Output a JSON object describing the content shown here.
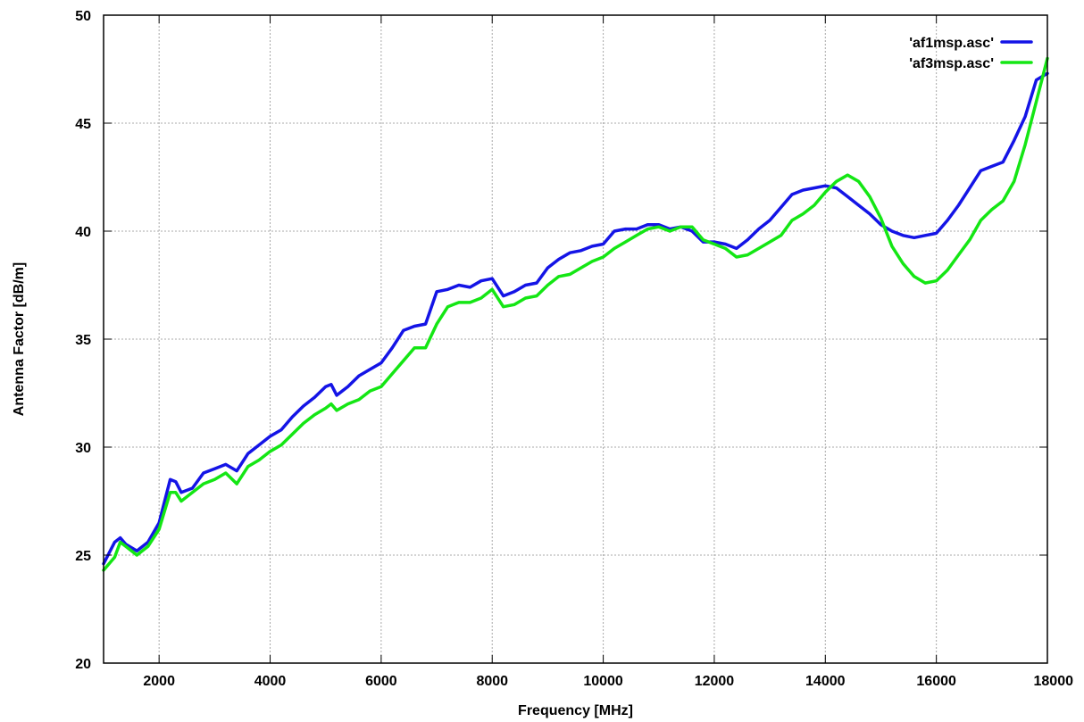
{
  "chart_data": {
    "type": "line",
    "title": "",
    "xlabel": "Frequency [MHz]",
    "ylabel": "Antenna Factor [dB/m]",
    "xlim": [
      1000,
      18000
    ],
    "ylim": [
      20,
      50
    ],
    "xticks": [
      2000,
      4000,
      6000,
      8000,
      10000,
      12000,
      14000,
      16000,
      18000
    ],
    "yticks": [
      20,
      25,
      30,
      35,
      40,
      45,
      50
    ],
    "grid": true,
    "legend_position": "top-right",
    "series": [
      {
        "name": "'af1msp.asc'",
        "color": "#1414e6",
        "points": [
          [
            1000,
            24.6
          ],
          [
            1200,
            25.6
          ],
          [
            1300,
            25.8
          ],
          [
            1400,
            25.5
          ],
          [
            1600,
            25.2
          ],
          [
            1800,
            25.6
          ],
          [
            2000,
            26.5
          ],
          [
            2200,
            28.5
          ],
          [
            2300,
            28.4
          ],
          [
            2400,
            27.9
          ],
          [
            2600,
            28.1
          ],
          [
            2800,
            28.8
          ],
          [
            3000,
            29.0
          ],
          [
            3200,
            29.2
          ],
          [
            3400,
            28.9
          ],
          [
            3600,
            29.7
          ],
          [
            3800,
            30.1
          ],
          [
            4000,
            30.5
          ],
          [
            4200,
            30.8
          ],
          [
            4400,
            31.4
          ],
          [
            4600,
            31.9
          ],
          [
            4800,
            32.3
          ],
          [
            5000,
            32.8
          ],
          [
            5100,
            32.9
          ],
          [
            5200,
            32.4
          ],
          [
            5400,
            32.8
          ],
          [
            5600,
            33.3
          ],
          [
            5800,
            33.6
          ],
          [
            6000,
            33.9
          ],
          [
            6200,
            34.6
          ],
          [
            6400,
            35.4
          ],
          [
            6600,
            35.6
          ],
          [
            6800,
            35.7
          ],
          [
            7000,
            37.2
          ],
          [
            7200,
            37.3
          ],
          [
            7400,
            37.5
          ],
          [
            7600,
            37.4
          ],
          [
            7800,
            37.7
          ],
          [
            8000,
            37.8
          ],
          [
            8200,
            37.0
          ],
          [
            8400,
            37.2
          ],
          [
            8600,
            37.5
          ],
          [
            8800,
            37.6
          ],
          [
            9000,
            38.3
          ],
          [
            9200,
            38.7
          ],
          [
            9400,
            39.0
          ],
          [
            9600,
            39.1
          ],
          [
            9800,
            39.3
          ],
          [
            10000,
            39.4
          ],
          [
            10200,
            40.0
          ],
          [
            10400,
            40.1
          ],
          [
            10600,
            40.1
          ],
          [
            10800,
            40.3
          ],
          [
            11000,
            40.3
          ],
          [
            11200,
            40.1
          ],
          [
            11400,
            40.2
          ],
          [
            11600,
            40.0
          ],
          [
            11800,
            39.5
          ],
          [
            12000,
            39.5
          ],
          [
            12200,
            39.4
          ],
          [
            12400,
            39.2
          ],
          [
            12600,
            39.6
          ],
          [
            12800,
            40.1
          ],
          [
            13000,
            40.5
          ],
          [
            13200,
            41.1
          ],
          [
            13400,
            41.7
          ],
          [
            13600,
            41.9
          ],
          [
            13800,
            42.0
          ],
          [
            14000,
            42.1
          ],
          [
            14200,
            42.0
          ],
          [
            14400,
            41.6
          ],
          [
            14600,
            41.2
          ],
          [
            14800,
            40.8
          ],
          [
            15000,
            40.3
          ],
          [
            15200,
            40.0
          ],
          [
            15400,
            39.8
          ],
          [
            15600,
            39.7
          ],
          [
            15800,
            39.8
          ],
          [
            16000,
            39.9
          ],
          [
            16200,
            40.5
          ],
          [
            16400,
            41.2
          ],
          [
            16600,
            42.0
          ],
          [
            16800,
            42.8
          ],
          [
            17000,
            43.0
          ],
          [
            17200,
            43.2
          ],
          [
            17400,
            44.2
          ],
          [
            17600,
            45.3
          ],
          [
            17800,
            47.0
          ],
          [
            18000,
            47.3
          ]
        ]
      },
      {
        "name": "'af3msp.asc'",
        "color": "#14e614",
        "points": [
          [
            1000,
            24.3
          ],
          [
            1200,
            24.9
          ],
          [
            1300,
            25.6
          ],
          [
            1400,
            25.4
          ],
          [
            1600,
            25.0
          ],
          [
            1800,
            25.4
          ],
          [
            2000,
            26.2
          ],
          [
            2200,
            27.9
          ],
          [
            2300,
            27.9
          ],
          [
            2400,
            27.5
          ],
          [
            2600,
            27.9
          ],
          [
            2800,
            28.3
          ],
          [
            3000,
            28.5
          ],
          [
            3200,
            28.8
          ],
          [
            3400,
            28.3
          ],
          [
            3600,
            29.1
          ],
          [
            3800,
            29.4
          ],
          [
            4000,
            29.8
          ],
          [
            4200,
            30.1
          ],
          [
            4400,
            30.6
          ],
          [
            4600,
            31.1
          ],
          [
            4800,
            31.5
          ],
          [
            5000,
            31.8
          ],
          [
            5100,
            32.0
          ],
          [
            5200,
            31.7
          ],
          [
            5400,
            32.0
          ],
          [
            5600,
            32.2
          ],
          [
            5800,
            32.6
          ],
          [
            6000,
            32.8
          ],
          [
            6200,
            33.4
          ],
          [
            6400,
            34.0
          ],
          [
            6600,
            34.6
          ],
          [
            6800,
            34.6
          ],
          [
            7000,
            35.7
          ],
          [
            7200,
            36.5
          ],
          [
            7400,
            36.7
          ],
          [
            7600,
            36.7
          ],
          [
            7800,
            36.9
          ],
          [
            8000,
            37.3
          ],
          [
            8200,
            36.5
          ],
          [
            8400,
            36.6
          ],
          [
            8600,
            36.9
          ],
          [
            8800,
            37.0
          ],
          [
            9000,
            37.5
          ],
          [
            9200,
            37.9
          ],
          [
            9400,
            38.0
          ],
          [
            9600,
            38.3
          ],
          [
            9800,
            38.6
          ],
          [
            10000,
            38.8
          ],
          [
            10200,
            39.2
          ],
          [
            10400,
            39.5
          ],
          [
            10600,
            39.8
          ],
          [
            10800,
            40.1
          ],
          [
            11000,
            40.2
          ],
          [
            11200,
            40.0
          ],
          [
            11400,
            40.2
          ],
          [
            11600,
            40.2
          ],
          [
            11800,
            39.6
          ],
          [
            12000,
            39.4
          ],
          [
            12200,
            39.2
          ],
          [
            12400,
            38.8
          ],
          [
            12600,
            38.9
          ],
          [
            12800,
            39.2
          ],
          [
            13000,
            39.5
          ],
          [
            13200,
            39.8
          ],
          [
            13400,
            40.5
          ],
          [
            13600,
            40.8
          ],
          [
            13800,
            41.2
          ],
          [
            14000,
            41.8
          ],
          [
            14200,
            42.3
          ],
          [
            14400,
            42.6
          ],
          [
            14600,
            42.3
          ],
          [
            14800,
            41.6
          ],
          [
            15000,
            40.6
          ],
          [
            15200,
            39.3
          ],
          [
            15400,
            38.5
          ],
          [
            15600,
            37.9
          ],
          [
            15800,
            37.6
          ],
          [
            16000,
            37.7
          ],
          [
            16200,
            38.2
          ],
          [
            16400,
            38.9
          ],
          [
            16600,
            39.6
          ],
          [
            16800,
            40.5
          ],
          [
            17000,
            41.0
          ],
          [
            17200,
            41.4
          ],
          [
            17400,
            42.3
          ],
          [
            17600,
            44.0
          ],
          [
            17800,
            46.0
          ],
          [
            18000,
            48.0
          ]
        ]
      }
    ]
  }
}
